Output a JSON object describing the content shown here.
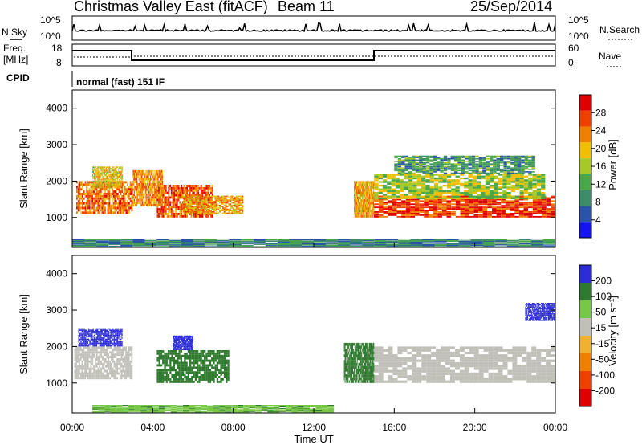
{
  "header": {
    "title": "Christmas Valley East (fitACF)",
    "beam": "Beam 11",
    "date": "25/Sep/2014"
  },
  "top_panels": {
    "nsky": {
      "label": "N.Sky",
      "ticks": [
        "10^5",
        "10^0"
      ]
    },
    "nsearch": {
      "label": "N.Search",
      "ticks": [
        "10^5",
        "10^0"
      ]
    },
    "freq": {
      "label_1": "Freq.",
      "label_2": "[MHz]",
      "ticks": [
        "18",
        "8"
      ]
    },
    "nave": {
      "label": "Nave",
      "ticks": [
        "60",
        "0"
      ]
    },
    "cpid": {
      "label": "CPID",
      "value": "normal (fast) 151 IF"
    }
  },
  "colors": {
    "power_scale": [
      "#1414f0",
      "#2a54a8",
      "#3e8c6a",
      "#4aa84a",
      "#a8c828",
      "#f0c000",
      "#f08000",
      "#f04000",
      "#e00000"
    ],
    "velocity_scale": [
      "#e00000",
      "#f04000",
      "#f08000",
      "#f0b030",
      "#c0c0b8",
      "#78c848",
      "#2e7a2e",
      "#2c2cd8"
    ]
  },
  "chart_data": [
    {
      "type": "heatmap",
      "name": "power",
      "ylabel": "Slant Range [km]",
      "ylim": [
        180,
        4500
      ],
      "yticks": [
        "4000",
        "3000",
        "2000",
        "1000"
      ],
      "xlim": [
        0,
        24
      ],
      "colorbar": {
        "label": "Power [dB]",
        "ticks": [
          "28",
          "24",
          "20",
          "16",
          "12",
          "8",
          "4"
        ],
        "range": [
          0,
          32
        ]
      },
      "regions": [
        {
          "x": [
            0.2,
            3.0
          ],
          "y": [
            1100,
            2000
          ],
          "level": 0.8
        },
        {
          "x": [
            1.0,
            2.5
          ],
          "y": [
            1800,
            2400
          ],
          "level": 0.6
        },
        {
          "x": [
            3.0,
            4.5
          ],
          "y": [
            1300,
            2300
          ],
          "level": 0.75
        },
        {
          "x": [
            4.2,
            7.0
          ],
          "y": [
            1000,
            1900
          ],
          "level": 0.85
        },
        {
          "x": [
            5.5,
            8.5
          ],
          "y": [
            1100,
            1600
          ],
          "level": 0.7
        },
        {
          "x": [
            14.0,
            15.0
          ],
          "y": [
            1000,
            2000
          ],
          "level": 0.7
        },
        {
          "x": [
            15.0,
            24.0
          ],
          "y": [
            1000,
            1600
          ],
          "level": 0.9
        },
        {
          "x": [
            15.0,
            23.5
          ],
          "y": [
            1500,
            2200
          ],
          "level": 0.5
        },
        {
          "x": [
            16.0,
            23.0
          ],
          "y": [
            2200,
            2700
          ],
          "level": 0.3
        },
        {
          "x": [
            0.0,
            24.0
          ],
          "y": [
            200,
            400
          ],
          "level": 0.25
        }
      ]
    },
    {
      "type": "heatmap",
      "name": "velocity",
      "ylabel": "Slant Range [km]",
      "ylim": [
        180,
        4500
      ],
      "yticks": [
        "4000",
        "3000",
        "2000",
        "1000"
      ],
      "xlim": [
        0,
        24
      ],
      "xticks": [
        "00:00",
        "04:00",
        "08:00",
        "12:00",
        "16:00",
        "20:00",
        "00:00"
      ],
      "xlabel": "Time UT",
      "colorbar": {
        "label": "Velocity [m s⁻¹]",
        "ticks": [
          "200",
          "100",
          "50",
          "15",
          "-15",
          "-50",
          "-100",
          "-200"
        ]
      },
      "regions": [
        {
          "x": [
            0.1,
            3.0
          ],
          "y": [
            1100,
            2000
          ],
          "velocity": 0
        },
        {
          "x": [
            0.3,
            2.5
          ],
          "y": [
            2000,
            2500
          ],
          "velocity": 220
        },
        {
          "x": [
            4.2,
            7.8
          ],
          "y": [
            1000,
            1900
          ],
          "velocity": 70
        },
        {
          "x": [
            5.0,
            6.0
          ],
          "y": [
            1900,
            2300
          ],
          "velocity": 220
        },
        {
          "x": [
            14.5,
            24.0
          ],
          "y": [
            1000,
            2000
          ],
          "velocity": 0
        },
        {
          "x": [
            13.5,
            15.0
          ],
          "y": [
            1000,
            2100
          ],
          "velocity": 70
        },
        {
          "x": [
            22.5,
            24.0
          ],
          "y": [
            2700,
            3200
          ],
          "velocity": 220
        },
        {
          "x": [
            1.0,
            13.0
          ],
          "y": [
            200,
            400
          ],
          "velocity": 40
        }
      ]
    }
  ]
}
